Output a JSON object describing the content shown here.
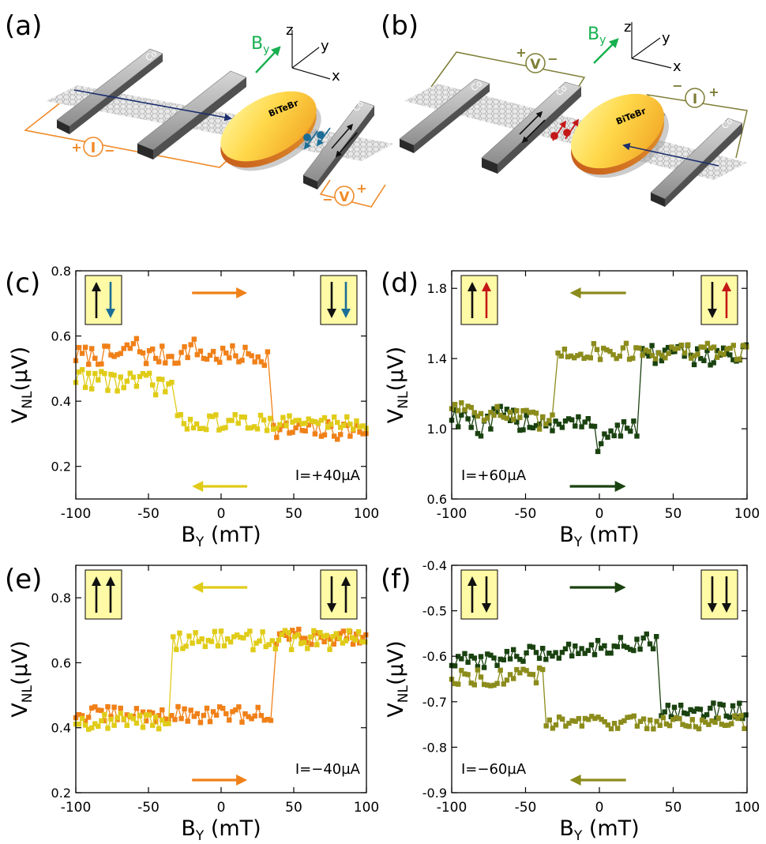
{
  "colors": {
    "orange": "#f08018",
    "yellow": "#e0cc18",
    "olive": "#8c8c1c",
    "darkgreen": "#1a4210",
    "green": "#18b050",
    "navy": "#1c2e6e",
    "teal": "#1a6e96",
    "red": "#c41818",
    "inset": "#fffaa6",
    "lead_orange": "#f08a28",
    "lead_olive": "#7d7d36"
  },
  "schematics": [
    {
      "panel_label": "(a)",
      "field_label": "B",
      "field_sub": "y",
      "axis_labels": [
        "z",
        "y",
        "x"
      ],
      "electrode_label": "Co",
      "flake_label": "BiTeBr",
      "current_label": "I",
      "voltage_label": "V",
      "current_signs": [
        "+",
        "−"
      ],
      "voltage_signs": [
        "−",
        "+"
      ]
    },
    {
      "panel_label": "(b)",
      "field_label": "B",
      "field_sub": "y",
      "axis_labels": [
        "z",
        "y",
        "x"
      ],
      "electrode_label": "Co",
      "flake_label": "BiTeBr",
      "current_label": "I",
      "voltage_label": "V",
      "current_signs": [
        "−",
        "+"
      ],
      "voltage_signs": [
        "+",
        "−"
      ]
    }
  ],
  "chart_data": [
    {
      "panel_label": "(c)",
      "type": "line",
      "xlabel": "B",
      "xlabel_sub": "Y",
      "xlabel_unit": " (mT)",
      "ylabel": "V",
      "ylabel_sub": "NL",
      "ylabel_unit": "(µV)",
      "xlim": [
        -100,
        100
      ],
      "ylim": [
        0.1,
        0.8
      ],
      "xticks": [
        -100,
        -50,
        0,
        50,
        100
      ],
      "xtick_labels": [
        "-100",
        "-50",
        "0",
        "50",
        "100"
      ],
      "yticks": [
        0.2,
        0.4,
        0.6,
        0.8
      ],
      "ytick_labels": [
        "0.2",
        "0.4",
        "0.6",
        "0.8"
      ],
      "annotation": "I=+40µA",
      "annotation_pos": "bottom-right",
      "sweep_arrows": [
        {
          "direction": "right",
          "color": "orange",
          "position": "top"
        },
        {
          "direction": "left",
          "color": "yellow",
          "position": "bottom"
        }
      ],
      "insets": [
        {
          "position": "left",
          "arrows": [
            {
              "dir": "up",
              "color": "black"
            },
            {
              "dir": "down",
              "color": "teal"
            }
          ]
        },
        {
          "position": "right",
          "arrows": [
            {
              "dir": "down",
              "color": "black"
            },
            {
              "dir": "down",
              "color": "teal"
            }
          ]
        }
      ],
      "series": [
        {
          "color": "orange",
          "segments": [
            {
              "x": [
                -100,
                34
              ],
              "base": 0.54,
              "amp": 0.03,
              "dips": [
                [
                  -60,
                  0.04
                ],
                [
                  -20,
                  0.03
                ]
              ]
            },
            {
              "x": [
                36,
                100
              ],
              "base": 0.31,
              "amp": 0.03
            }
          ],
          "jump_x": 35
        },
        {
          "color": "yellow",
          "segments": [
            {
              "x": [
                -100,
                -32
              ],
              "base": 0.46,
              "amp": 0.035,
              "trend": 0.03
            },
            {
              "x": [
                -30,
                100
              ],
              "base": 0.335,
              "amp": 0.025
            }
          ],
          "jump_x": -31
        }
      ]
    },
    {
      "panel_label": "(d)",
      "type": "line",
      "xlabel": "B",
      "xlabel_sub": "Y",
      "xlabel_unit": " (mT)",
      "ylabel": "V",
      "ylabel_sub": "NL",
      "ylabel_unit": "(µV)",
      "xlim": [
        -100,
        100
      ],
      "ylim": [
        0.6,
        1.9
      ],
      "xticks": [
        -100,
        -50,
        0,
        50,
        100
      ],
      "xtick_labels": [
        "-100",
        "-50",
        "0",
        "50",
        "100"
      ],
      "yticks": [
        0.6,
        1.0,
        1.4,
        1.8
      ],
      "ytick_labels": [
        "0.6",
        "1.0",
        "1.4",
        "1.8"
      ],
      "annotation": "I=+60µA",
      "annotation_pos": "bottom-left",
      "sweep_arrows": [
        {
          "direction": "left",
          "color": "olive",
          "position": "top"
        },
        {
          "direction": "right",
          "color": "darkgreen",
          "position": "bottom"
        }
      ],
      "insets": [
        {
          "position": "left",
          "arrows": [
            {
              "dir": "up",
              "color": "black"
            },
            {
              "dir": "up",
              "color": "red"
            }
          ]
        },
        {
          "position": "right",
          "arrows": [
            {
              "dir": "down",
              "color": "black"
            },
            {
              "dir": "up",
              "color": "red"
            }
          ]
        }
      ],
      "series": [
        {
          "color": "darkgreen",
          "segments": [
            {
              "x": [
                -100,
                27
              ],
              "base": 1.04,
              "amp": 0.07,
              "trend": 0.08,
              "dips": [
                [
                  -80,
                  -0.12
                ],
                [
                  0,
                  -0.1
                ]
              ]
            },
            {
              "x": [
                29,
                100
              ],
              "base": 1.42,
              "amp": 0.06
            }
          ],
          "jump_x": 28
        },
        {
          "color": "olive",
          "segments": [
            {
              "x": [
                -100,
                -30
              ],
              "base": 1.08,
              "amp": 0.06,
              "trend": 0.12
            },
            {
              "x": [
                -28,
                100
              ],
              "base": 1.44,
              "amp": 0.05
            }
          ],
          "jump_x": -29
        }
      ]
    },
    {
      "panel_label": "(e)",
      "type": "line",
      "xlabel": "B",
      "xlabel_sub": "Y",
      "xlabel_unit": " (mT)",
      "ylabel": "V",
      "ylabel_sub": "NL",
      "ylabel_unit": "(µV)",
      "xlim": [
        -100,
        100
      ],
      "ylim": [
        0.2,
        0.9
      ],
      "xticks": [
        -100,
        -50,
        0,
        50,
        100
      ],
      "xtick_labels": [
        "-100",
        "-50",
        "0",
        "50",
        "100"
      ],
      "yticks": [
        0.2,
        0.4,
        0.6,
        0.8
      ],
      "ytick_labels": [
        "0.2",
        "0.4",
        "0.6",
        "0.8"
      ],
      "annotation": "I=−40µA",
      "annotation_pos": "bottom-right",
      "sweep_arrows": [
        {
          "direction": "left",
          "color": "yellow",
          "position": "top"
        },
        {
          "direction": "right",
          "color": "orange",
          "position": "bottom"
        }
      ],
      "insets": [
        {
          "position": "left",
          "arrows": [
            {
              "dir": "up",
              "color": "black"
            },
            {
              "dir": "up",
              "color": "black"
            }
          ]
        },
        {
          "position": "right",
          "arrows": [
            {
              "dir": "down",
              "color": "black"
            },
            {
              "dir": "up",
              "color": "black"
            }
          ]
        }
      ],
      "series": [
        {
          "color": "orange",
          "segments": [
            {
              "x": [
                -100,
                36
              ],
              "base": 0.44,
              "amp": 0.025
            },
            {
              "x": [
                38,
                100
              ],
              "base": 0.68,
              "amp": 0.025
            }
          ],
          "jump_x": 37
        },
        {
          "color": "yellow",
          "segments": [
            {
              "x": [
                -100,
                -35
              ],
              "base": 0.42,
              "amp": 0.025
            },
            {
              "x": [
                -33,
                100
              ],
              "base": 0.67,
              "amp": 0.03
            }
          ],
          "jump_x": -34
        }
      ]
    },
    {
      "panel_label": "(f)",
      "type": "line",
      "xlabel": "B",
      "xlabel_sub": "Y",
      "xlabel_unit": " (mT)",
      "ylabel": "V",
      "ylabel_sub": "NL",
      "ylabel_unit": "(µV)",
      "xlim": [
        -100,
        100
      ],
      "ylim": [
        -0.9,
        -0.4
      ],
      "xticks": [
        -100,
        -50,
        0,
        50,
        100
      ],
      "xtick_labels": [
        "-100",
        "-50",
        "0",
        "50",
        "100"
      ],
      "yticks": [
        -0.9,
        -0.8,
        -0.7,
        -0.6,
        -0.5,
        -0.4
      ],
      "ytick_labels": [
        "-0.9",
        "-0.8",
        "-0.7",
        "-0.6",
        "-0.5",
        "-0.4"
      ],
      "annotation": "I=−60µA",
      "annotation_pos": "bottom-left",
      "sweep_arrows": [
        {
          "direction": "right",
          "color": "darkgreen",
          "position": "top"
        },
        {
          "direction": "left",
          "color": "olive",
          "position": "bottom"
        }
      ],
      "insets": [
        {
          "position": "left",
          "arrows": [
            {
              "dir": "up",
              "color": "black"
            },
            {
              "dir": "down",
              "color": "black"
            }
          ]
        },
        {
          "position": "right",
          "arrows": [
            {
              "dir": "down",
              "color": "black"
            },
            {
              "dir": "down",
              "color": "black"
            }
          ]
        }
      ],
      "series": [
        {
          "color": "darkgreen",
          "segments": [
            {
              "x": [
                -100,
                40
              ],
              "base": -0.59,
              "amp": 0.018,
              "trend": -0.05
            },
            {
              "x": [
                42,
                100
              ],
              "base": -0.72,
              "amp": 0.018
            }
          ],
          "jump_x": 41
        },
        {
          "color": "olive",
          "segments": [
            {
              "x": [
                -100,
                -38
              ],
              "base": -0.645,
              "amp": 0.02
            },
            {
              "x": [
                -36,
                100
              ],
              "base": -0.745,
              "amp": 0.015
            }
          ],
          "jump_x": -37
        }
      ]
    }
  ]
}
